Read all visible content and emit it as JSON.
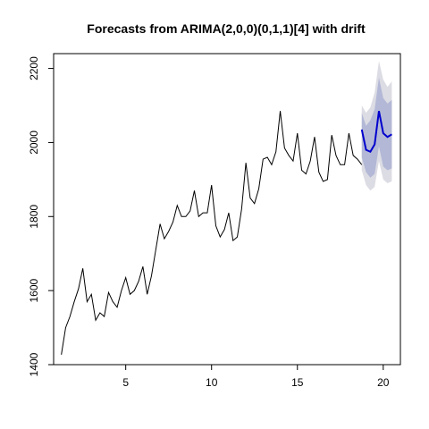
{
  "chart_data": {
    "type": "line",
    "title": "Forecasts from ARIMA(2,0,0)(0,1,1)[4] with drift",
    "xlabel": "",
    "ylabel": "",
    "xlim": [
      0.8,
      21
    ],
    "ylim": [
      1400,
      2240
    ],
    "x_ticks": [
      5,
      10,
      15,
      20
    ],
    "y_ticks": [
      1400,
      1600,
      1800,
      2000,
      2200
    ],
    "grid": false,
    "series": [
      {
        "role": "observed",
        "color": "#000000",
        "x": [
          1.25,
          1.5,
          1.75,
          2.0,
          2.25,
          2.5,
          2.75,
          3.0,
          3.25,
          3.5,
          3.75,
          4.0,
          4.25,
          4.5,
          4.75,
          5.0,
          5.25,
          5.5,
          5.75,
          6.0,
          6.25,
          6.5,
          6.75,
          7.0,
          7.25,
          7.5,
          7.75,
          8.0,
          8.25,
          8.5,
          8.75,
          9.0,
          9.25,
          9.5,
          9.75,
          10.0,
          10.25,
          10.5,
          10.75,
          11.0,
          11.25,
          11.5,
          11.75,
          12.0,
          12.25,
          12.5,
          12.75,
          13.0,
          13.25,
          13.5,
          13.75,
          14.0,
          14.25,
          14.5,
          14.75,
          15.0,
          15.25,
          15.5,
          15.75,
          16.0,
          16.25,
          16.5,
          16.75,
          17.0,
          17.25,
          17.5,
          17.75,
          18.0,
          18.25,
          18.5,
          18.75
        ],
        "y": [
          1427,
          1500,
          1530,
          1570,
          1605,
          1660,
          1570,
          1590,
          1520,
          1540,
          1530,
          1595,
          1570,
          1555,
          1600,
          1635,
          1590,
          1600,
          1625,
          1665,
          1590,
          1640,
          1710,
          1780,
          1740,
          1760,
          1785,
          1830,
          1800,
          1800,
          1815,
          1870,
          1800,
          1810,
          1810,
          1885,
          1775,
          1745,
          1765,
          1810,
          1735,
          1745,
          1820,
          1945,
          1850,
          1835,
          1875,
          1955,
          1960,
          1940,
          1975,
          2085,
          1985,
          1965,
          1950,
          2025,
          1925,
          1915,
          1950,
          2015,
          1920,
          1895,
          1900,
          2020,
          1965,
          1940,
          1940,
          2025,
          1965,
          1955,
          1940
        ]
      },
      {
        "role": "forecast",
        "color": "#0000cd",
        "x": [
          18.75,
          19.0,
          19.25,
          19.5,
          19.75,
          20.0,
          20.25,
          20.5
        ],
        "y": [
          2035,
          1980,
          1975,
          1995,
          2085,
          2025,
          2015,
          2022
        ],
        "lower_80": [
          1960,
          1920,
          1905,
          1915,
          1990,
          1935,
          1925,
          1930
        ],
        "upper_80": [
          2080,
          2045,
          2060,
          2090,
          2175,
          2120,
          2105,
          2115
        ],
        "lower_95": [
          1925,
          1885,
          1870,
          1880,
          1950,
          1900,
          1890,
          1895
        ],
        "upper_95": [
          2100,
          2080,
          2095,
          2135,
          2220,
          2170,
          2150,
          2165
        ],
        "band_80_color": "#b3b8d6",
        "band_95_color": "#dcdce4"
      }
    ]
  }
}
